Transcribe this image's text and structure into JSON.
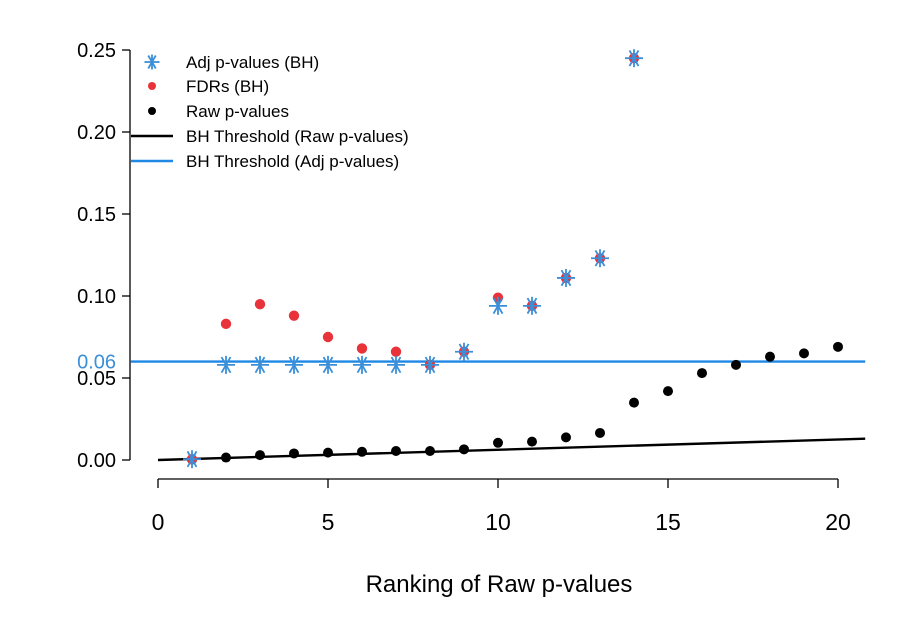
{
  "chart_data": {
    "type": "scatter",
    "title": "",
    "xlabel": "Ranking of Raw p-values",
    "ylabel": "",
    "xlim": [
      0,
      20.8
    ],
    "ylim": [
      0,
      0.25
    ],
    "x_ticks": [
      0,
      5,
      10,
      15,
      20
    ],
    "x_tick_labels": [
      "0",
      "5",
      "10",
      "15",
      "20"
    ],
    "y_ticks": [
      0,
      0.05,
      0.1,
      0.15,
      0.2,
      0.25
    ],
    "y_tick_labels": [
      "0.00",
      "0.05",
      "0.10",
      "0.15",
      "0.20",
      "0.25"
    ],
    "extra_y_tick": {
      "value": 0.06,
      "label": "0.06",
      "color": "#3b8fd9"
    },
    "colors": {
      "adj": "#3b8fd9",
      "fdr": "#e8333a",
      "raw": "#000000",
      "bh_raw": "#000000",
      "bh_adj": "#1f88e5"
    },
    "series": [
      {
        "name": "Adj p-values (BH)",
        "marker": "asterisk",
        "x": [
          1,
          2,
          3,
          4,
          5,
          6,
          7,
          8,
          9,
          10,
          11,
          12,
          13,
          14
        ],
        "y": [
          0.0005,
          0.058,
          0.058,
          0.058,
          0.058,
          0.058,
          0.058,
          0.058,
          0.066,
          0.094,
          0.094,
          0.111,
          0.123,
          0.245
        ]
      },
      {
        "name": "FDRs (BH)",
        "marker": "dot",
        "x": [
          1,
          2,
          3,
          4,
          5,
          6,
          7,
          8,
          9,
          10,
          11,
          12,
          13,
          14
        ],
        "y": [
          0.0005,
          0.083,
          0.095,
          0.088,
          0.075,
          0.068,
          0.066,
          0.058,
          0.066,
          0.099,
          0.094,
          0.111,
          0.123,
          0.245
        ]
      },
      {
        "name": "Raw p-values",
        "marker": "dot",
        "x": [
          1,
          2,
          3,
          4,
          5,
          6,
          7,
          8,
          9,
          10,
          11,
          12,
          13,
          14,
          15,
          16,
          17,
          18,
          19,
          20
        ],
        "y": [
          0.0003,
          0.0015,
          0.003,
          0.004,
          0.0045,
          0.005,
          0.0055,
          0.0055,
          0.0065,
          0.0105,
          0.0112,
          0.0138,
          0.0165,
          0.035,
          0.042,
          0.053,
          0.058,
          0.063,
          0.065,
          0.069
        ]
      },
      {
        "name": "BH Threshold (Raw p-values)",
        "marker": "line",
        "x": [
          0,
          20.8
        ],
        "y": [
          0,
          0.013
        ]
      },
      {
        "name": "BH Threshold (Adj p-values)",
        "marker": "line",
        "x": [
          -0.8,
          20.8
        ],
        "y": [
          0.06,
          0.06
        ]
      }
    ],
    "legend": {
      "position": "top-left",
      "entries": [
        "Adj p-values (BH)",
        "FDRs (BH)",
        "Raw p-values",
        "BH Threshold (Raw p-values)",
        "BH Threshold (Adj p-values)"
      ]
    }
  }
}
